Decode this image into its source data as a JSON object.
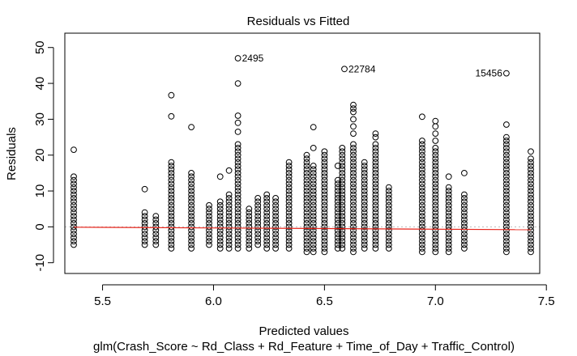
{
  "chart_data": {
    "type": "scatter",
    "title": "Residuals vs Fitted",
    "xlabel": "Predicted values",
    "ylabel": "Residuals",
    "sublabel": "glm(Crash_Score ~ Rd_Class + Rd_Feature + Time_of_Day + Traffic_Control)",
    "xlim": [
      5.33,
      7.47
    ],
    "ylim": [
      -13,
      54
    ],
    "xticks": [
      5.5,
      6.0,
      6.5,
      7.0,
      7.5
    ],
    "xtick_labels": [
      "5.5",
      "6.0",
      "6.5",
      "7.0",
      "7.5"
    ],
    "yticks": [
      -10,
      0,
      10,
      20,
      30,
      40,
      50
    ],
    "ytick_labels": [
      "-10",
      "0",
      "10",
      "20",
      "30",
      "40",
      "50"
    ],
    "grid": false,
    "reference_line": {
      "y": 0,
      "style": "dotted",
      "color": "#bbbbbb"
    },
    "smooth_line": {
      "color": "#e8251b",
      "x": [
        5.37,
        7.43
      ],
      "y": [
        -0.1,
        -0.8
      ]
    },
    "annotations": [
      {
        "x": 6.11,
        "y": 47.0,
        "label": "2495"
      },
      {
        "x": 6.59,
        "y": 44.0,
        "label": "22784"
      },
      {
        "x": 7.32,
        "y": 42.8,
        "label": "15456"
      }
    ],
    "columns": [
      {
        "x": 5.37,
        "min": -5,
        "max": 14,
        "extra": [
          21.5
        ]
      },
      {
        "x": 5.69,
        "min": -5,
        "max": 4,
        "extra": [
          10.5
        ]
      },
      {
        "x": 5.74,
        "min": -5,
        "max": 3,
        "extra": []
      },
      {
        "x": 5.81,
        "min": -6,
        "max": 18,
        "extra": [
          30.8,
          36.7
        ]
      },
      {
        "x": 5.9,
        "min": -6,
        "max": 15,
        "extra": [
          27.8
        ]
      },
      {
        "x": 5.98,
        "min": -5,
        "max": 6,
        "extra": []
      },
      {
        "x": 6.03,
        "min": -6,
        "max": 7,
        "extra": [
          14
        ]
      },
      {
        "x": 6.07,
        "min": -6,
        "max": 9,
        "extra": [
          15.7
        ]
      },
      {
        "x": 6.11,
        "min": -6,
        "max": 23,
        "extra": [
          26.5,
          29,
          31,
          40
        ]
      },
      {
        "x": 6.16,
        "min": -6,
        "max": 5,
        "extra": []
      },
      {
        "x": 6.2,
        "min": -5,
        "max": 8,
        "extra": []
      },
      {
        "x": 6.24,
        "min": -6,
        "max": 9,
        "extra": []
      },
      {
        "x": 6.28,
        "min": -6,
        "max": 8,
        "extra": []
      },
      {
        "x": 6.34,
        "min": -6,
        "max": 18,
        "extra": []
      },
      {
        "x": 6.42,
        "min": -7,
        "max": 20,
        "extra": []
      },
      {
        "x": 6.45,
        "min": -7,
        "max": 17,
        "extra": [
          22,
          27.8
        ]
      },
      {
        "x": 6.5,
        "min": -7,
        "max": 21,
        "extra": []
      },
      {
        "x": 6.56,
        "min": -6,
        "max": 13,
        "extra": [
          17
        ]
      },
      {
        "x": 6.58,
        "min": -6,
        "max": 22,
        "extra": []
      },
      {
        "x": 6.63,
        "min": -7,
        "max": 23,
        "extra": [
          26,
          28,
          30,
          32,
          33,
          34
        ]
      },
      {
        "x": 6.68,
        "min": -6,
        "max": 18,
        "extra": []
      },
      {
        "x": 6.73,
        "min": -6,
        "max": 23,
        "extra": [
          25,
          26
        ]
      },
      {
        "x": 6.79,
        "min": -6,
        "max": 11,
        "extra": []
      },
      {
        "x": 6.94,
        "min": -7,
        "max": 23,
        "extra": [
          24,
          30.7
        ]
      },
      {
        "x": 7.0,
        "min": -7,
        "max": 22,
        "extra": [
          24,
          26,
          28,
          29.5
        ]
      },
      {
        "x": 7.06,
        "min": -7,
        "max": 11,
        "extra": [
          14
        ]
      },
      {
        "x": 7.13,
        "min": -6,
        "max": 9,
        "extra": [
          15
        ]
      },
      {
        "x": 7.32,
        "min": -7,
        "max": 25,
        "extra": [
          28.5
        ]
      },
      {
        "x": 7.43,
        "min": -7,
        "max": 19,
        "extra": [
          21
        ]
      }
    ]
  }
}
